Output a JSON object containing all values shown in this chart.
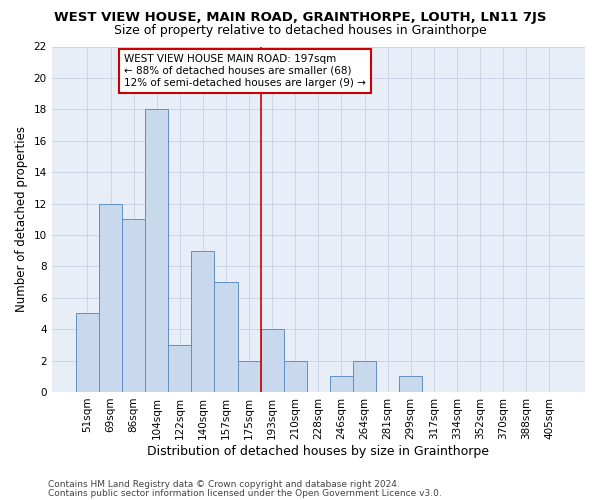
{
  "title": "WEST VIEW HOUSE, MAIN ROAD, GRAINTHORPE, LOUTH, LN11 7JS",
  "subtitle": "Size of property relative to detached houses in Grainthorpe",
  "xlabel": "Distribution of detached houses by size in Grainthorpe",
  "ylabel": "Number of detached properties",
  "footer_line1": "Contains HM Land Registry data © Crown copyright and database right 2024.",
  "footer_line2": "Contains public sector information licensed under the Open Government Licence v3.0.",
  "bin_labels": [
    "51sqm",
    "69sqm",
    "86sqm",
    "104sqm",
    "122sqm",
    "140sqm",
    "157sqm",
    "175sqm",
    "193sqm",
    "210sqm",
    "228sqm",
    "246sqm",
    "264sqm",
    "281sqm",
    "299sqm",
    "317sqm",
    "334sqm",
    "352sqm",
    "370sqm",
    "388sqm",
    "405sqm"
  ],
  "bar_heights": [
    5,
    12,
    11,
    18,
    3,
    9,
    7,
    2,
    4,
    2,
    0,
    1,
    2,
    0,
    1,
    0,
    0,
    0,
    0,
    0,
    0
  ],
  "bar_color": "#c8d9ee",
  "bar_edge_color": "#6090c0",
  "vline_color": "#cc0000",
  "annotation_text": "WEST VIEW HOUSE MAIN ROAD: 197sqm\n← 88% of detached houses are smaller (68)\n12% of semi-detached houses are larger (9) →",
  "annotation_box_color": "#cc0000",
  "annotation_fill": "#ffffff",
  "ylim": [
    0,
    22
  ],
  "yticks": [
    0,
    2,
    4,
    6,
    8,
    10,
    12,
    14,
    16,
    18,
    20,
    22
  ],
  "grid_color": "#ccd5e5",
  "background_color": "#e8eef8",
  "title_fontsize": 9.5,
  "subtitle_fontsize": 9,
  "xlabel_fontsize": 9,
  "ylabel_fontsize": 8.5,
  "tick_fontsize": 7.5,
  "annotation_fontsize": 7.5,
  "footer_fontsize": 6.5,
  "vline_index": 8
}
